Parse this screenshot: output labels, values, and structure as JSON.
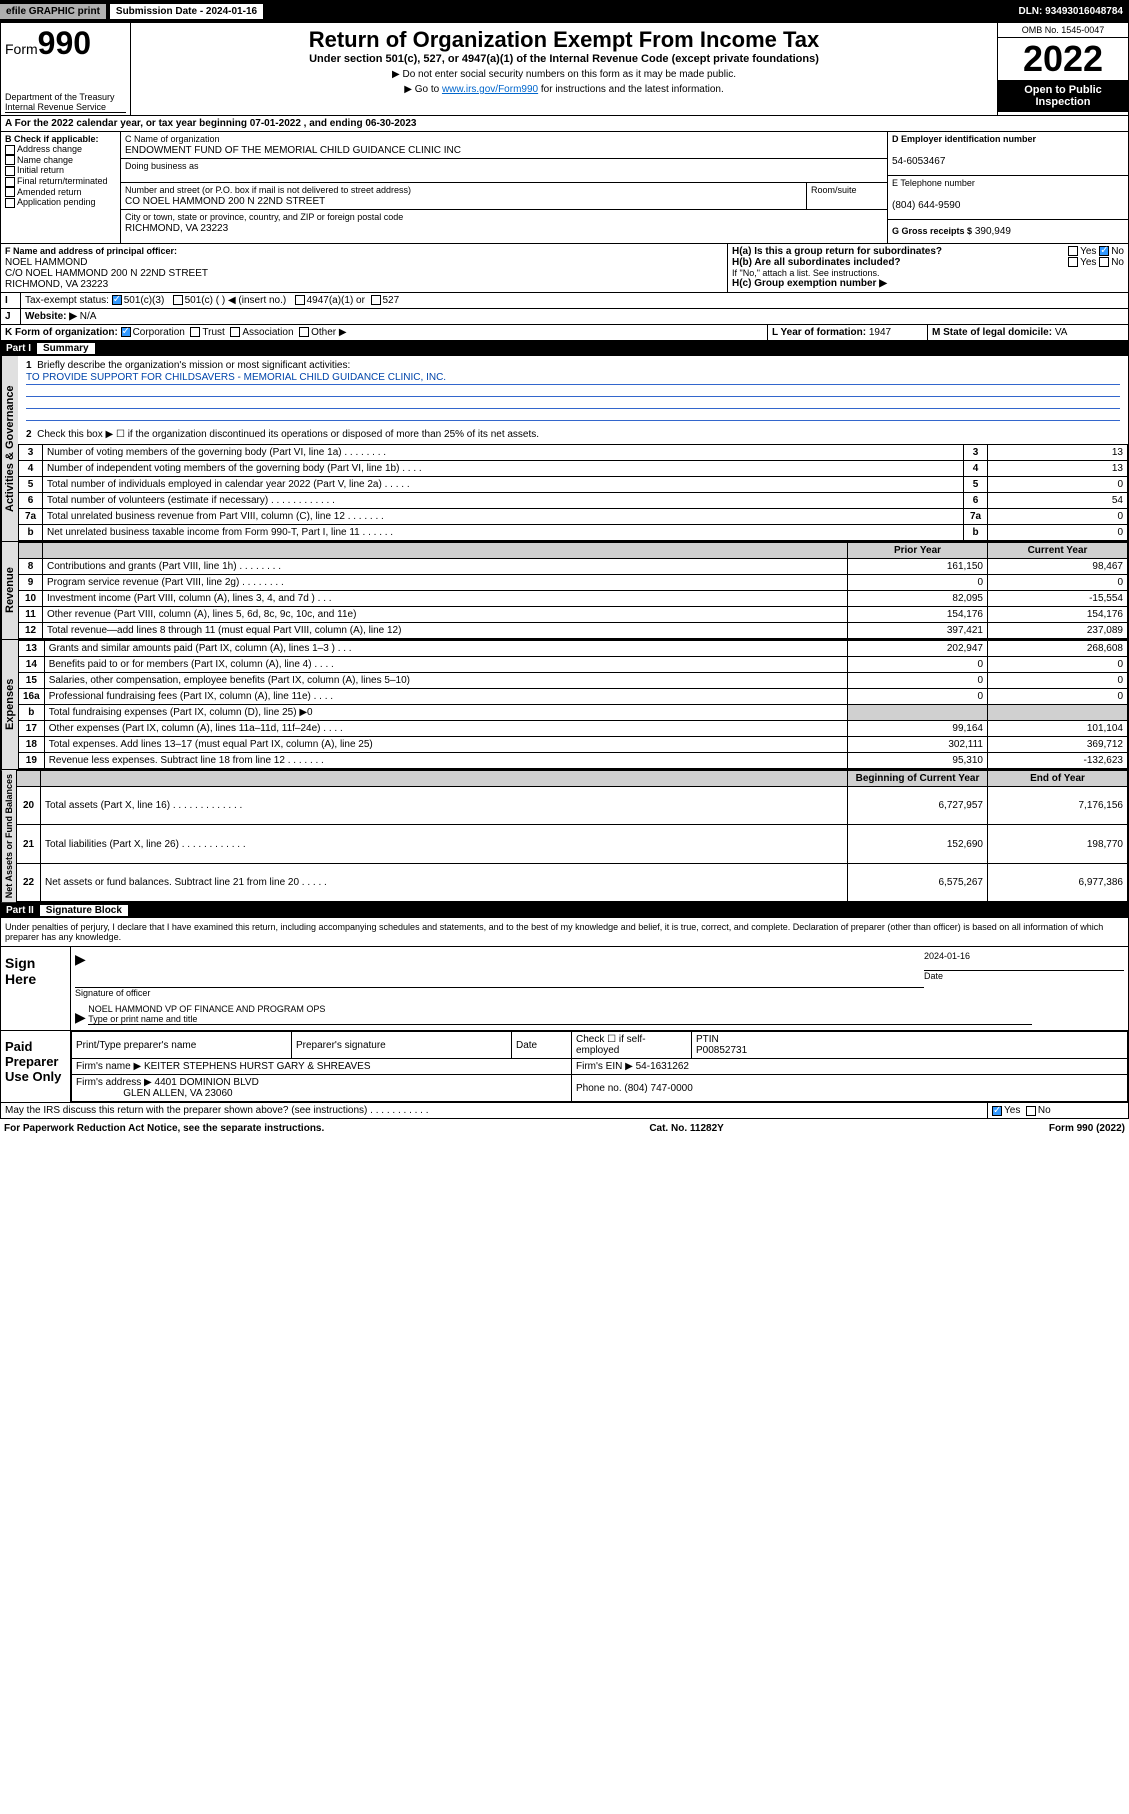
{
  "topbar": {
    "efile": "efile GRAPHIC print",
    "subdate_label": "Submission Date - 2024-01-16",
    "dln": "DLN: 93493016048784"
  },
  "header": {
    "form_prefix": "Form",
    "form_no": "990",
    "dept": "Department of the Treasury",
    "irs": "Internal Revenue Service",
    "title": "Return of Organization Exempt From Income Tax",
    "subtitle": "Under section 501(c), 527, or 4947(a)(1) of the Internal Revenue Code (except private foundations)",
    "note1": "▶ Do not enter social security numbers on this form as it may be made public.",
    "note2_pre": "▶ Go to ",
    "note2_link": "www.irs.gov/Form990",
    "note2_post": " for instructions and the latest information.",
    "omb": "OMB No. 1545-0047",
    "year": "2022",
    "open": "Open to Public Inspection"
  },
  "sectionA": {
    "tax_year": "For the 2022 calendar year, or tax year beginning 07-01-2022  , and ending 06-30-2023",
    "b_label": "B Check if applicable:",
    "b_items": [
      "Address change",
      "Name change",
      "Initial return",
      "Final return/terminated",
      "Amended return",
      "Application pending"
    ],
    "c_label": "C Name of organization",
    "org_name": "ENDOWMENT FUND OF THE MEMORIAL CHILD GUIDANCE CLINIC INC",
    "dba_label": "Doing business as",
    "addr_label": "Number and street (or P.O. box if mail is not delivered to street address)",
    "room_label": "Room/suite",
    "addr": "CO NOEL HAMMOND 200 N 22ND STREET",
    "city_label": "City or town, state or province, country, and ZIP or foreign postal code",
    "city": "RICHMOND, VA  23223",
    "d_label": "D Employer identification number",
    "ein": "54-6053467",
    "e_label": "E Telephone number",
    "phone": "(804) 644-9590",
    "g_label": "G Gross receipts $",
    "gross": "390,949",
    "f_label": "F  Name and address of principal officer:",
    "officer": "NOEL HAMMOND",
    "officer_addr": "C/O NOEL HAMMOND 200 N 22ND STREET",
    "officer_city": "RICHMOND, VA  23223",
    "ha_label": "H(a)  Is this a group return for subordinates?",
    "hb_label": "H(b)  Are all subordinates included?",
    "h_note": "If \"No,\" attach a list. See instructions.",
    "hc_label": "H(c)  Group exemption number ▶",
    "i_label": "Tax-exempt status:",
    "i_501c3": "501(c)(3)",
    "i_501c": "501(c) (   ) ◀ (insert no.)",
    "i_4947": "4947(a)(1) or",
    "i_527": "527",
    "j_label": "Website: ▶",
    "website": "N/A",
    "k_label": "K Form of organization:",
    "k_corp": "Corporation",
    "k_trust": "Trust",
    "k_assoc": "Association",
    "k_other": "Other ▶",
    "l_label": "L Year of formation:",
    "l_val": "1947",
    "m_label": "M State of legal domicile:",
    "m_val": "VA",
    "yes": "Yes",
    "no": "No"
  },
  "part1": {
    "title": "Part I",
    "subtitle": "Summary",
    "line1_label": "Briefly describe the organization's mission or most significant activities:",
    "mission": "TO PROVIDE SUPPORT FOR CHILDSAVERS - MEMORIAL CHILD GUIDANCE CLINIC, INC.",
    "line2_label": "Check this box ▶ ☐  if the organization discontinued its operations or disposed of more than 25% of its net assets.",
    "vlabels": {
      "ag": "Activities & Governance",
      "rev": "Revenue",
      "exp": "Expenses",
      "na": "Net Assets or Fund Balances"
    },
    "col_prior": "Prior Year",
    "col_current": "Current Year",
    "col_beg": "Beginning of Current Year",
    "col_end": "End of Year",
    "rows_ag": [
      {
        "n": "3",
        "d": "Number of voting members of the governing body (Part VI, line 1a)  .   .   .   .   .   .   .   .",
        "v": "13"
      },
      {
        "n": "4",
        "d": "Number of independent voting members of the governing body (Part VI, line 1b)  .   .   .   .",
        "v": "13"
      },
      {
        "n": "5",
        "d": "Total number of individuals employed in calendar year 2022 (Part V, line 2a)  .   .   .   .   .",
        "v": "0"
      },
      {
        "n": "6",
        "d": "Total number of volunteers (estimate if necessary)  .   .   .   .   .   .   .   .   .   .   .   .",
        "v": "54"
      },
      {
        "n": "7a",
        "d": "Total unrelated business revenue from Part VIII, column (C), line 12  .   .   .   .   .   .   .",
        "v": "0"
      },
      {
        "n": "b",
        "d": "Net unrelated business taxable income from Form 990-T, Part I, line 11  .   .   .   .   .   .",
        "v": "0"
      }
    ],
    "rows_rev": [
      {
        "n": "8",
        "d": "Contributions and grants (Part VIII, line 1h)  .   .   .   .   .   .   .   .",
        "p": "161,150",
        "c": "98,467"
      },
      {
        "n": "9",
        "d": "Program service revenue (Part VIII, line 2g)  .   .   .   .   .   .   .   .",
        "p": "0",
        "c": "0"
      },
      {
        "n": "10",
        "d": "Investment income (Part VIII, column (A), lines 3, 4, and 7d )  .   .   .",
        "p": "82,095",
        "c": "-15,554"
      },
      {
        "n": "11",
        "d": "Other revenue (Part VIII, column (A), lines 5, 6d, 8c, 9c, 10c, and 11e)",
        "p": "154,176",
        "c": "154,176"
      },
      {
        "n": "12",
        "d": "Total revenue—add lines 8 through 11 (must equal Part VIII, column (A), line 12)",
        "p": "397,421",
        "c": "237,089"
      }
    ],
    "rows_exp": [
      {
        "n": "13",
        "d": "Grants and similar amounts paid (Part IX, column (A), lines 1–3 )  .   .   .",
        "p": "202,947",
        "c": "268,608"
      },
      {
        "n": "14",
        "d": "Benefits paid to or for members (Part IX, column (A), line 4)  .   .   .   .",
        "p": "0",
        "c": "0"
      },
      {
        "n": "15",
        "d": "Salaries, other compensation, employee benefits (Part IX, column (A), lines 5–10)",
        "p": "0",
        "c": "0"
      },
      {
        "n": "16a",
        "d": "Professional fundraising fees (Part IX, column (A), line 11e)  .   .   .   .",
        "p": "0",
        "c": "0"
      },
      {
        "n": "b",
        "d": "Total fundraising expenses (Part IX, column (D), line 25) ▶0",
        "p": "",
        "c": "",
        "shade": true
      },
      {
        "n": "17",
        "d": "Other expenses (Part IX, column (A), lines 11a–11d, 11f–24e)  .   .   .   .",
        "p": "99,164",
        "c": "101,104"
      },
      {
        "n": "18",
        "d": "Total expenses. Add lines 13–17 (must equal Part IX, column (A), line 25)",
        "p": "302,111",
        "c": "369,712"
      },
      {
        "n": "19",
        "d": "Revenue less expenses. Subtract line 18 from line 12  .   .   .   .   .   .   .",
        "p": "95,310",
        "c": "-132,623"
      }
    ],
    "rows_na": [
      {
        "n": "20",
        "d": "Total assets (Part X, line 16)  .   .   .   .   .   .   .   .   .   .   .   .   .",
        "p": "6,727,957",
        "c": "7,176,156"
      },
      {
        "n": "21",
        "d": "Total liabilities (Part X, line 26)  .   .   .   .   .   .   .   .   .   .   .   .",
        "p": "152,690",
        "c": "198,770"
      },
      {
        "n": "22",
        "d": "Net assets or fund balances. Subtract line 21 from line 20  .   .   .   .   .",
        "p": "6,575,267",
        "c": "6,977,386"
      }
    ]
  },
  "part2": {
    "title": "Part II",
    "subtitle": "Signature Block",
    "decl": "Under penalties of perjury, I declare that I have examined this return, including accompanying schedules and statements, and to the best of my knowledge and belief, it is true, correct, and complete. Declaration of preparer (other than officer) is based on all information of which preparer has any knowledge.",
    "sign_here": "Sign Here",
    "sig_officer": "Signature of officer",
    "sig_date_label": "Date",
    "sig_date": "2024-01-16",
    "sig_name_label": "Type or print name and title",
    "sig_name": "NOEL HAMMOND  VP OF FINANCE AND PROGRAM OPS",
    "paid": "Paid Preparer Use Only",
    "prep_name_label": "Print/Type preparer's name",
    "prep_sig_label": "Preparer's signature",
    "prep_date_label": "Date",
    "prep_check_label": "Check ☐ if self-employed",
    "ptin_label": "PTIN",
    "ptin": "P00852731",
    "firm_name_label": "Firm's name     ▶",
    "firm_name": "KEITER STEPHENS HURST GARY & SHREAVES",
    "firm_ein_label": "Firm's EIN ▶",
    "firm_ein": "54-1631262",
    "firm_addr_label": "Firm's address ▶",
    "firm_addr1": "4401 DOMINION BLVD",
    "firm_addr2": "GLEN ALLEN, VA  23060",
    "firm_phone_label": "Phone no.",
    "firm_phone": "(804) 747-0000",
    "discuss": "May the IRS discuss this return with the preparer shown above? (see instructions)  .   .   .   .   .   .   .   .   .   .   ."
  },
  "footer": {
    "left": "For Paperwork Reduction Act Notice, see the separate instructions.",
    "mid": "Cat. No. 11282Y",
    "right": "Form 990 (2022)"
  }
}
